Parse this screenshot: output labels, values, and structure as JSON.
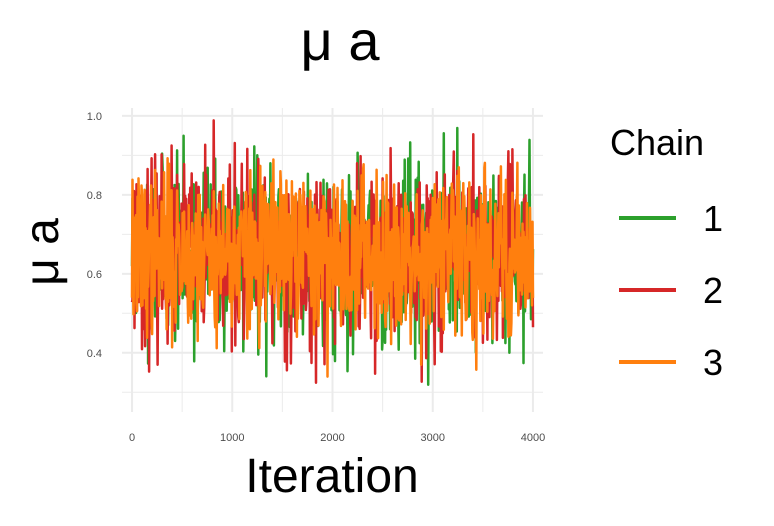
{
  "chart_data": {
    "type": "line",
    "title": "μ a",
    "xlabel": "Iteration",
    "ylabel": "μ a",
    "xlim": [
      -100,
      4100
    ],
    "ylim": [
      0.25,
      1.02
    ],
    "x_ticks": [
      0,
      1000,
      2000,
      3000,
      4000
    ],
    "x_tick_labels": [
      "0",
      "1000",
      "2000",
      "3000",
      "4000"
    ],
    "y_ticks": [
      0.4,
      0.6,
      0.8,
      1.0
    ],
    "y_tick_labels": [
      "0.4",
      "0.6",
      "0.8",
      "1.0"
    ],
    "x_range": [
      0,
      4000
    ],
    "grid": true,
    "legend": {
      "title": "Chain",
      "position": "right"
    },
    "series": [
      {
        "name": "1",
        "color": "#2ca02c",
        "mean": 0.65,
        "sd": 0.11,
        "min": 0.26,
        "max": 0.99,
        "seed": 11
      },
      {
        "name": "2",
        "color": "#d62728",
        "mean": 0.65,
        "sd": 0.11,
        "min": 0.29,
        "max": 1.0,
        "seed": 23
      },
      {
        "name": "3",
        "color": "#ff7f0e",
        "mean": 0.65,
        "sd": 0.1,
        "min": 0.3,
        "max": 0.99,
        "seed": 37
      }
    ]
  }
}
